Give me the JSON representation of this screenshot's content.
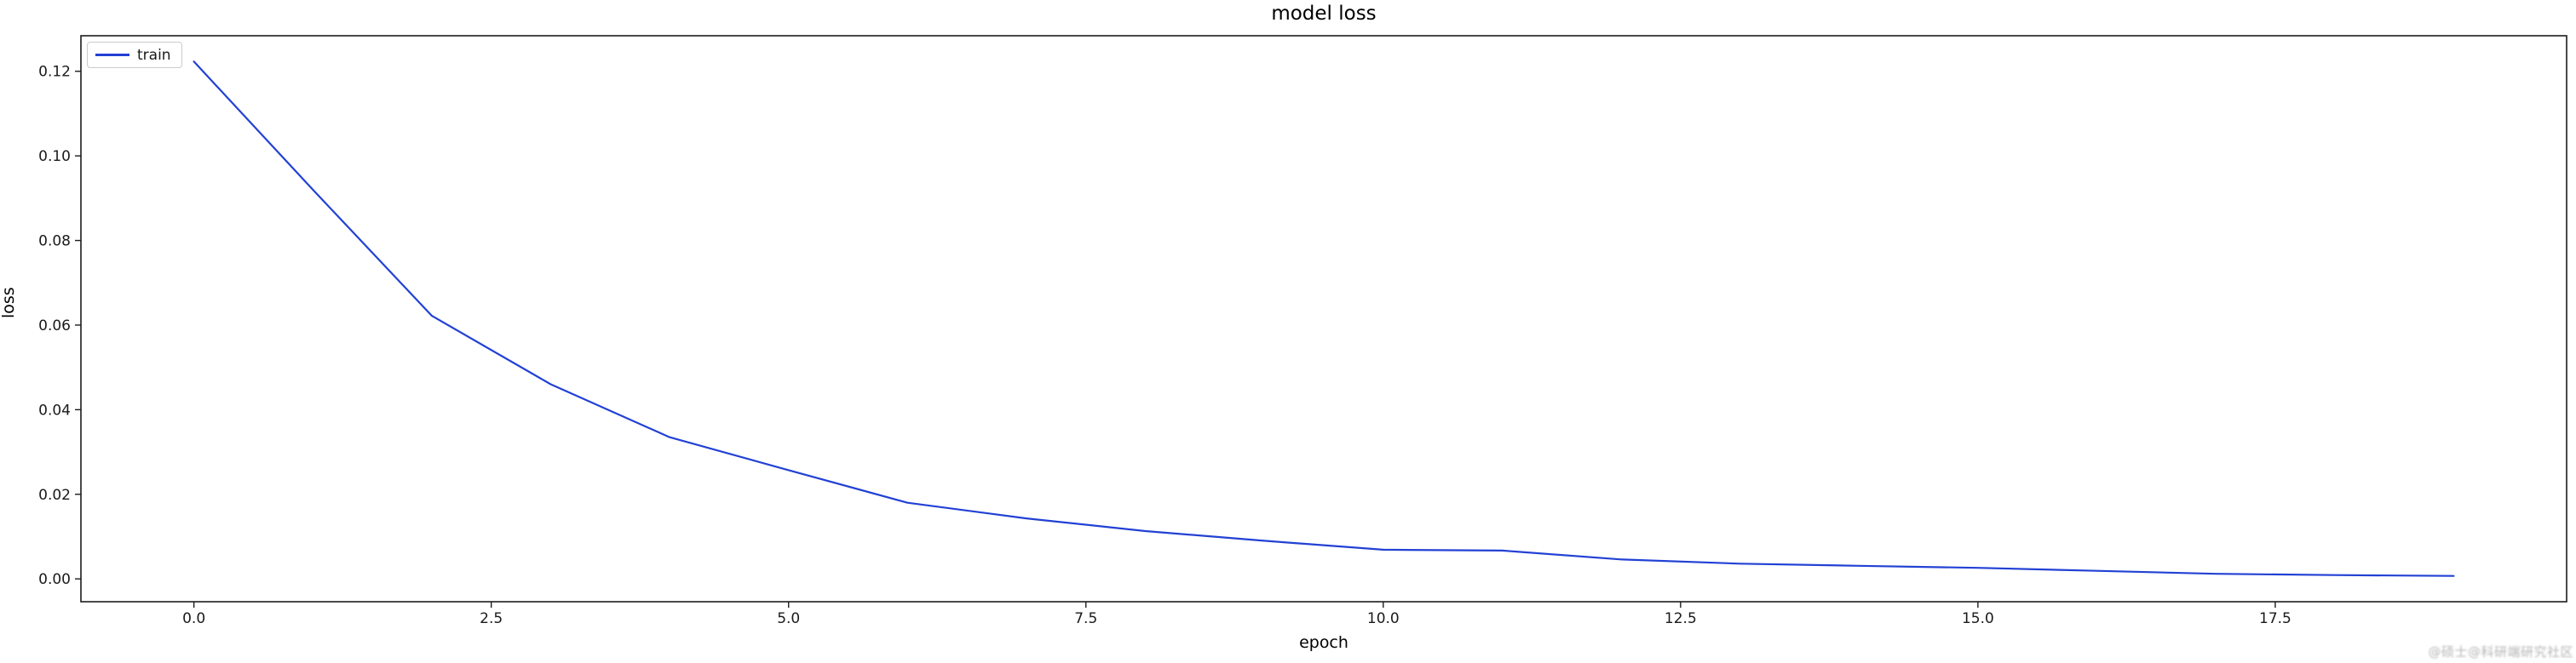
{
  "figure": {
    "title": "model loss",
    "xlabel": "epoch",
    "ylabel": "loss",
    "legend": {
      "position": "upper-left",
      "entries": [
        {
          "label": "train",
          "color": "#2241d4"
        }
      ]
    },
    "watermark_text": "@硕士@科研端研究社区"
  },
  "chart_data": {
    "type": "line",
    "title": "model loss",
    "xlabel": "epoch",
    "ylabel": "loss",
    "legend_entries": [
      "train"
    ],
    "legend_position": "upper-left",
    "grid": false,
    "line_color": "#2241d4",
    "axis_color": "#1c1c1c",
    "xlim": [
      -0.95,
      19.95
    ],
    "ylim": [
      -0.0054,
      0.1284
    ],
    "xticks": [
      0.0,
      2.5,
      5.0,
      7.5,
      10.0,
      12.5,
      15.0,
      17.5
    ],
    "xtick_labels": [
      "0.0",
      "2.5",
      "5.0",
      "7.5",
      "10.0",
      "12.5",
      "15.0",
      "17.5"
    ],
    "yticks": [
      0.0,
      0.02,
      0.04,
      0.06,
      0.08,
      0.1,
      0.12
    ],
    "ytick_labels": [
      "0.00",
      "0.02",
      "0.04",
      "0.06",
      "0.08",
      "0.10",
      "0.12"
    ],
    "series": [
      {
        "name": "train",
        "x": [
          0,
          1,
          2,
          3,
          4,
          5,
          6,
          7,
          8,
          9,
          10,
          11,
          12,
          13,
          14,
          15,
          16,
          17,
          18,
          19
        ],
        "values": [
          0.1223,
          0.092,
          0.0622,
          0.046,
          0.0335,
          0.0257,
          0.018,
          0.0143,
          0.0113,
          0.009,
          0.0069,
          0.0067,
          0.0046,
          0.0036,
          0.0031,
          0.0026,
          0.0019,
          0.0012,
          0.0009,
          0.0007
        ]
      }
    ]
  }
}
